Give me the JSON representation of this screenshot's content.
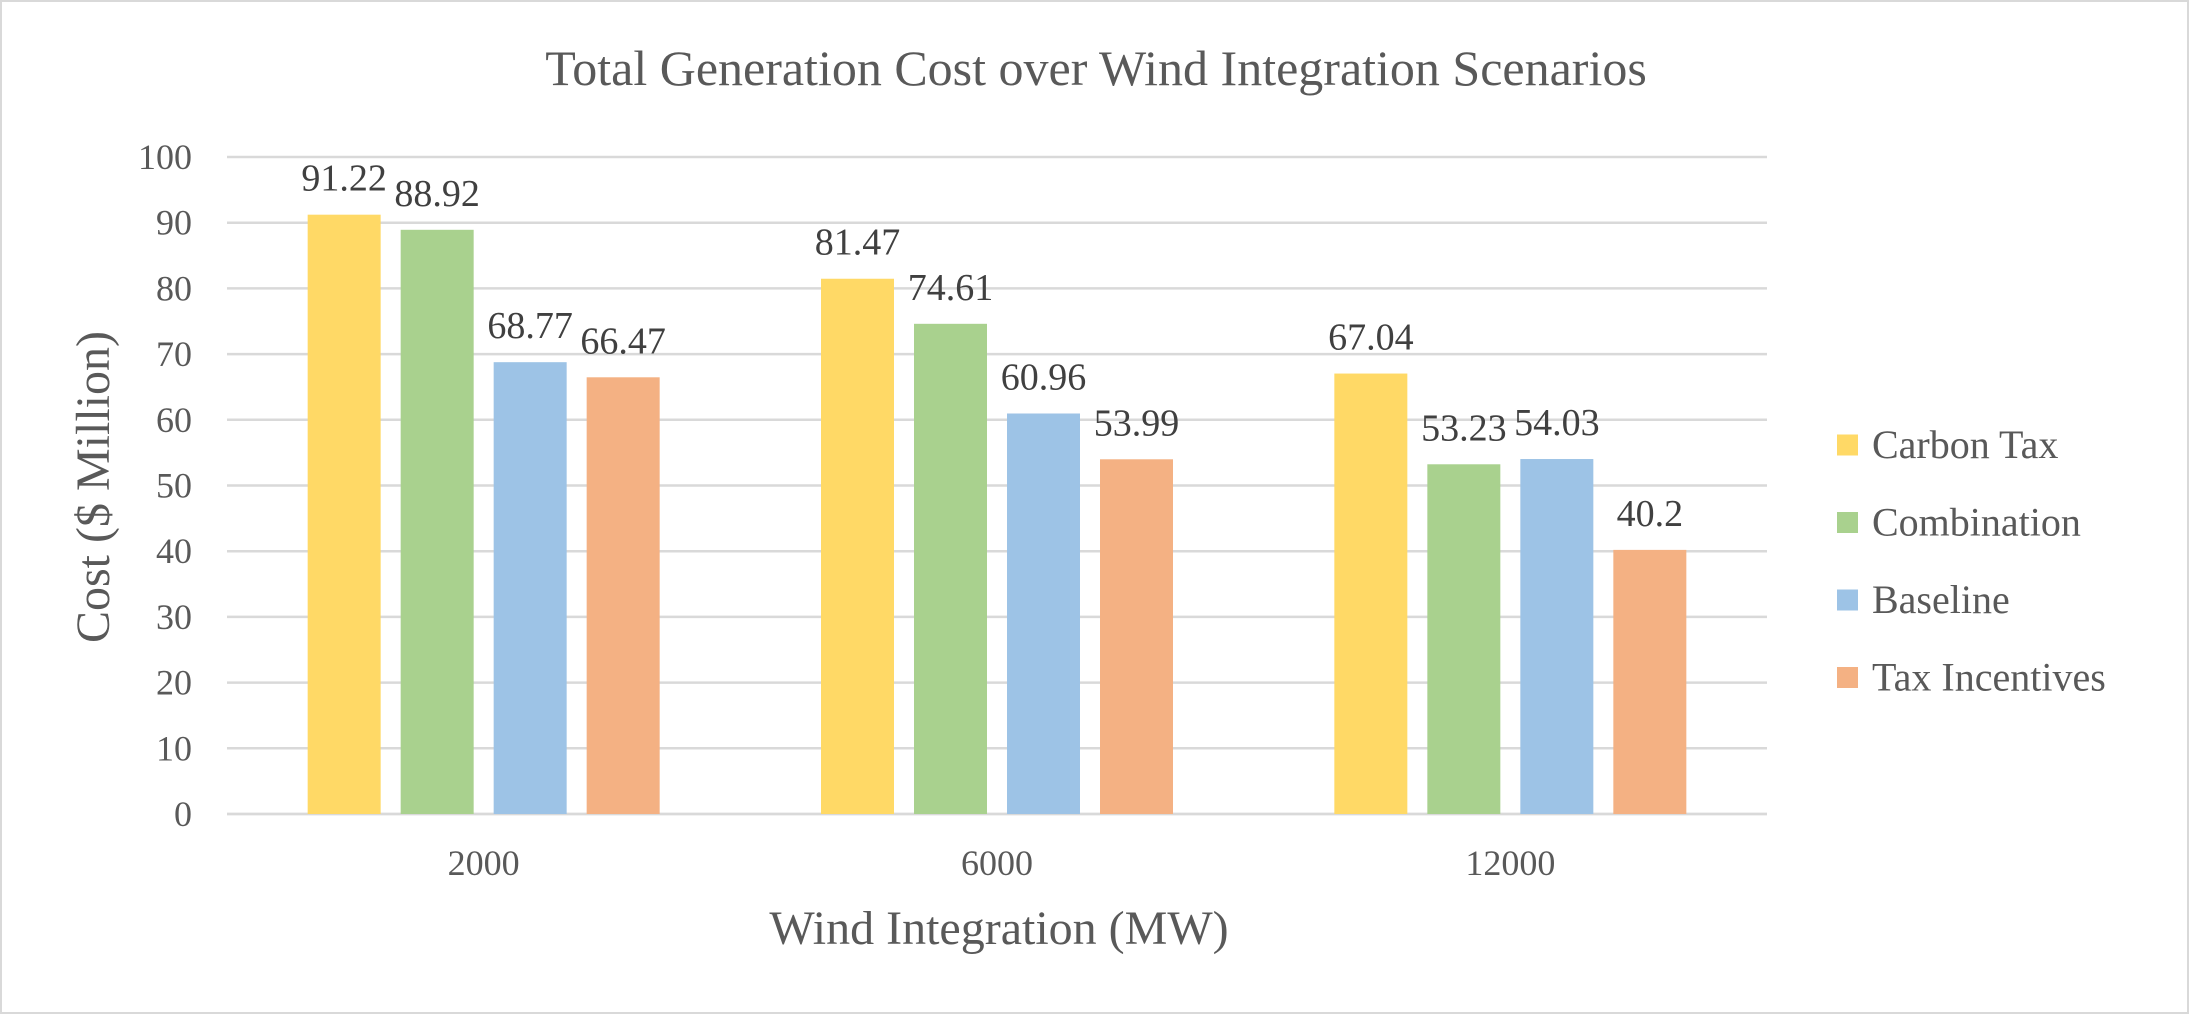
{
  "chart_data": {
    "type": "bar",
    "title": "Total Generation Cost over Wind Integration Scenarios",
    "xlabel": "Wind Integration (MW)",
    "ylabel": "Cost ($ Million)",
    "ylim": [
      0,
      100
    ],
    "yticks": [
      "0",
      "10",
      "20",
      "30",
      "40",
      "50",
      "60",
      "70",
      "80",
      "90",
      "100"
    ],
    "grid": true,
    "legend_position": "right",
    "categories": [
      "2000",
      "6000",
      "12000"
    ],
    "series": [
      {
        "name": "Carbon Tax",
        "color": "#FFD966",
        "values": [
          91.22,
          81.47,
          67.04
        ],
        "labels": [
          "91.22",
          "81.47",
          "67.04"
        ]
      },
      {
        "name": "Combination",
        "color": "#A9D18E",
        "values": [
          88.92,
          74.61,
          53.23
        ],
        "labels": [
          "88.92",
          "74.61",
          "53.23"
        ]
      },
      {
        "name": "Baseline",
        "color": "#9DC3E6",
        "values": [
          68.77,
          60.96,
          54.03
        ],
        "labels": [
          "68.77",
          "60.96",
          "54.03"
        ]
      },
      {
        "name": "Tax Incentives",
        "color": "#F4B183",
        "values": [
          66.47,
          53.99,
          40.2
        ],
        "labels": [
          "66.47",
          "53.99",
          "40.2"
        ]
      }
    ]
  }
}
